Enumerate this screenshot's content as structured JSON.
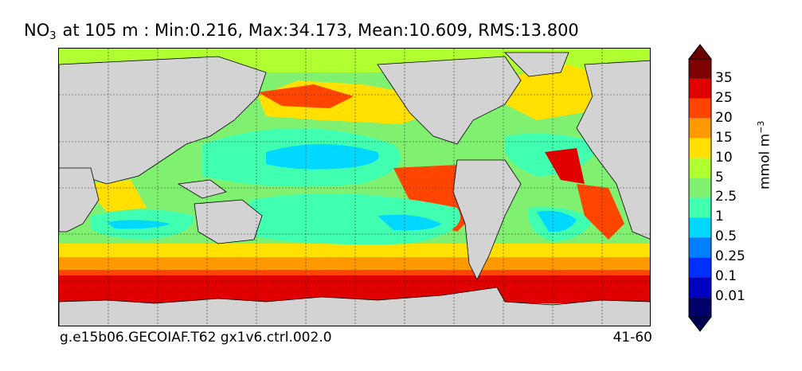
{
  "title": {
    "var_main": "NO",
    "var_sub": "3",
    "rest": "at 105 m : Min:0.216, Max:34.173, Mean:10.609, RMS:13.800"
  },
  "footer": {
    "case": "g.e15b06.GECOIAF.T62 gx1v6.ctrl.002.0",
    "years": "41-60"
  },
  "colorbar": {
    "unit_main": "mmol m",
    "unit_sup": "−3",
    "levels": [
      "35",
      "25",
      "20",
      "15",
      "10",
      "5",
      "2.5",
      "1",
      "0.5",
      "0.25",
      "0.1",
      "0.01"
    ],
    "colors": [
      "#7f0000",
      "#e00000",
      "#ff4500",
      "#ff9900",
      "#ffe000",
      "#b0ff30",
      "#80f070",
      "#40ffb0",
      "#00d8ff",
      "#0080ff",
      "#0030ff",
      "#0000c0",
      "#00006a"
    ],
    "overflow_top": "#6a0000",
    "overflow_bottom": "#000050"
  },
  "map": {
    "land_color": "#d3d3d3",
    "grid": true,
    "projection": "cylindrical",
    "center_longitude": "Pacific"
  }
}
